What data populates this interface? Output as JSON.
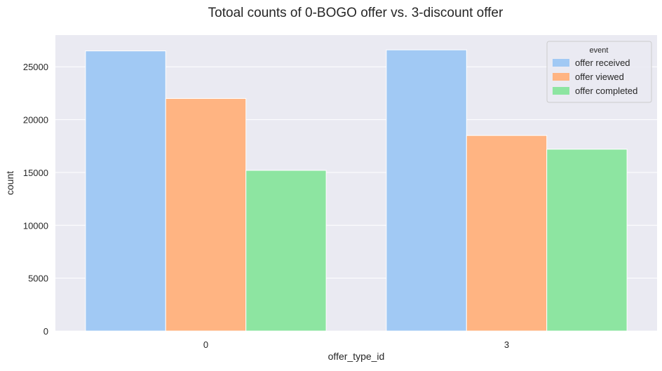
{
  "chart_data": {
    "type": "bar",
    "title": "Totoal counts of 0-BOGO offer vs. 3-discount offer",
    "xlabel": "offer_type_id",
    "ylabel": "count",
    "categories": [
      "0",
      "3"
    ],
    "series": [
      {
        "name": "offer received",
        "values": [
          26500,
          26600
        ],
        "color": "#a1c9f4"
      },
      {
        "name": "offer viewed",
        "values": [
          22000,
          18500
        ],
        "color": "#ffb482"
      },
      {
        "name": "offer completed",
        "values": [
          15200,
          17200
        ],
        "color": "#8de5a1"
      }
    ],
    "ylim": [
      0,
      28000
    ],
    "yticks": [
      0,
      5000,
      10000,
      15000,
      20000,
      25000
    ],
    "grid": true,
    "legend": {
      "title": "event",
      "placement": "top-right"
    },
    "background": "#eaeaf2"
  }
}
